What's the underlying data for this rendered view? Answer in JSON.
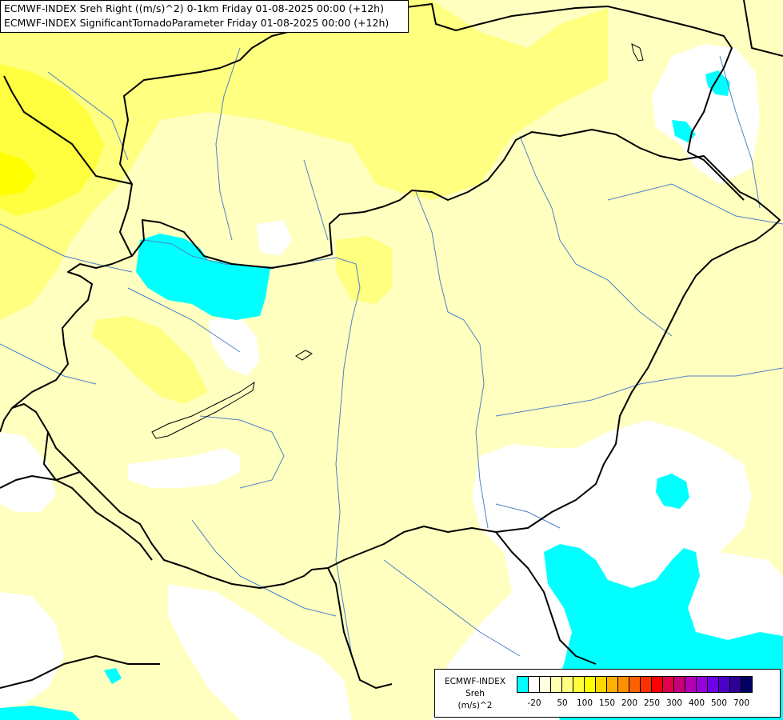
{
  "header": {
    "line1": "ECMWF-INDEX Sreh Right ((m/s)^2) 0-1km Friday 01-08-2025 00:00 (+12h)",
    "line2": "ECMWF-INDEX SignificantTornadoParameter Friday 01-08-2025 00:00 (+12h)"
  },
  "legend": {
    "title": "ECMWF-INDEX",
    "param": "Sreh",
    "unit": "(m/s)^2",
    "colors": [
      "#00ffff",
      "#ffffff",
      "#ffffe0",
      "#ffffb0",
      "#ffff80",
      "#ffff40",
      "#ffff00",
      "#ffd700",
      "#ffb000",
      "#ff9000",
      "#ff6000",
      "#ff3000",
      "#ff0000",
      "#e0004b",
      "#c80078",
      "#b400b4",
      "#9600dc",
      "#6e00e6",
      "#4b00c8",
      "#2d0096",
      "#000064"
    ],
    "tick_labels": [
      "-20",
      "50",
      "100",
      "150",
      "200",
      "250",
      "300",
      "400",
      "500",
      "700"
    ]
  },
  "colors": {
    "background_fill": "#ffffc0",
    "low_fill": "#ffffff",
    "mid_fill": "#ffff80",
    "high_fill": "#ffff30",
    "negative_fill": "#00ffff",
    "border": "#000000",
    "river": "#5080c8"
  }
}
